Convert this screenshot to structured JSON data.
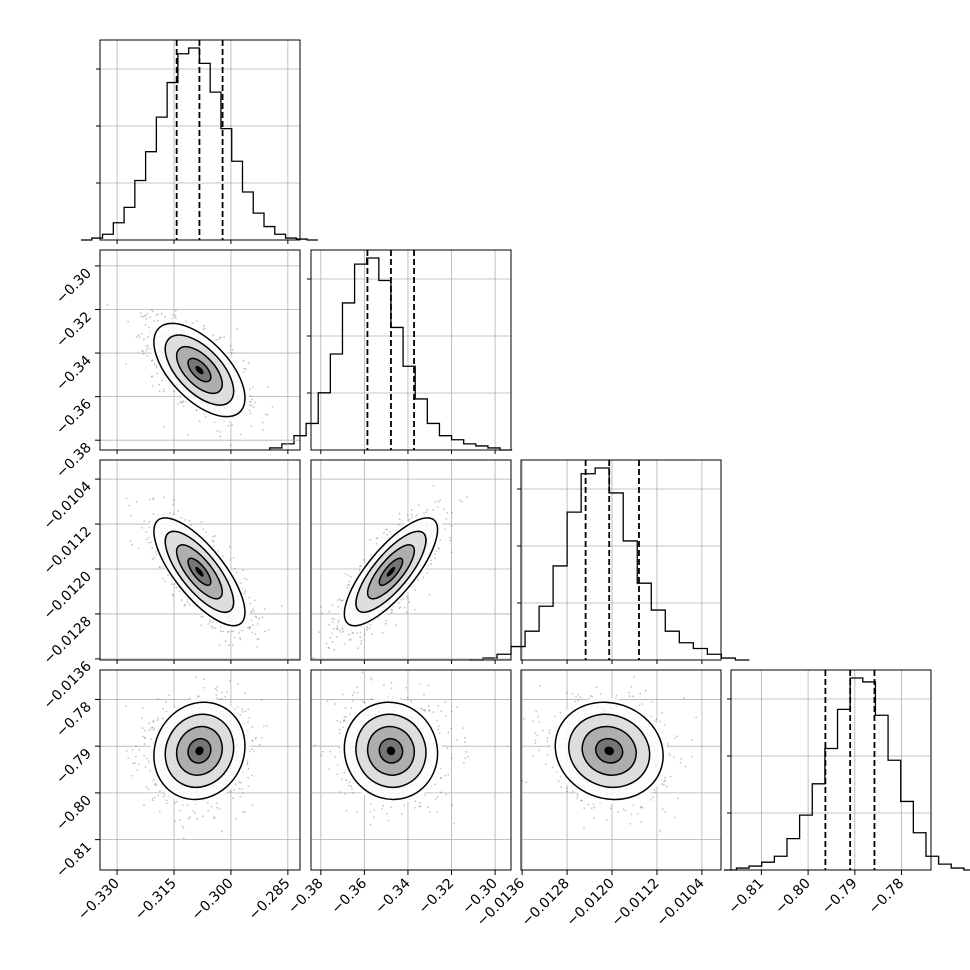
{
  "chart_data": {
    "type": "corner",
    "grid": true,
    "axes": [
      {
        "ticks": [
          -0.33,
          -0.315,
          -0.3,
          -0.285
        ],
        "tick_labels": [
          "−0.330",
          "−0.315",
          "−0.300",
          "−0.285"
        ],
        "range": [
          -0.3345,
          -0.2818
        ]
      },
      {
        "ticks": [
          -0.38,
          -0.36,
          -0.34,
          -0.32,
          -0.3
        ],
        "tick_labels": [
          "−0.38",
          "−0.36",
          "−0.34",
          "−0.32",
          "−0.30"
        ],
        "range": [
          -0.3845,
          -0.2927
        ]
      },
      {
        "ticks": [
          -0.0136,
          -0.0128,
          -0.012,
          -0.0112,
          -0.0104
        ],
        "tick_labels": [
          "−0.0136",
          "−0.0128",
          "−0.0120",
          "−0.0112",
          "−0.0104"
        ],
        "range": [
          -0.01362,
          -0.01006
        ]
      },
      {
        "ticks": [
          -0.81,
          -0.8,
          -0.79,
          -0.78
        ],
        "tick_labels": [
          "−0.81",
          "−0.80",
          "−0.79",
          "−0.78"
        ],
        "range": [
          -0.8165,
          -0.7737
        ]
      }
    ],
    "quantiles": [
      [
        -0.3143,
        -0.3083,
        -0.3022
      ],
      [
        -0.3586,
        -0.3478,
        -0.3372
      ],
      [
        -0.01247,
        -0.01205,
        -0.01152
      ],
      [
        -0.7963,
        -0.791,
        -0.7858
      ]
    ],
    "medians": [
      -0.3083,
      -0.3478,
      -0.01205,
      -0.791
    ],
    "sigmas": [
      0.006,
      0.0107,
      0.00048,
      0.0052
    ],
    "correlations": {
      "1-0": -0.6,
      "2-0": -0.75,
      "2-1": 0.78,
      "3-0": 0.1,
      "3-1": -0.05,
      "3-2": -0.1
    },
    "histograms": [
      [
        0,
        0.01,
        0.03,
        0.09,
        0.17,
        0.31,
        0.46,
        0.64,
        0.82,
        0.97,
        1.0,
        0.92,
        0.77,
        0.58,
        0.41,
        0.25,
        0.14,
        0.07,
        0.03,
        0.01,
        0.005,
        0
      ],
      [
        0.01,
        0.03,
        0.07,
        0.13,
        0.28,
        0.47,
        0.72,
        0.91,
        0.94,
        0.83,
        0.6,
        0.41,
        0.25,
        0.13,
        0.07,
        0.05,
        0.03,
        0.02,
        0.01,
        0
      ],
      [
        0,
        0.01,
        0.03,
        0.07,
        0.15,
        0.28,
        0.49,
        0.77,
        0.97,
        1.0,
        0.87,
        0.62,
        0.4,
        0.26,
        0.15,
        0.09,
        0.06,
        0.03,
        0.01,
        0
      ],
      [
        0,
        0.01,
        0.02,
        0.04,
        0.07,
        0.16,
        0.28,
        0.44,
        0.62,
        0.82,
        0.98,
        0.96,
        0.79,
        0.56,
        0.35,
        0.19,
        0.07,
        0.03,
        0.01,
        0
      ]
    ]
  }
}
